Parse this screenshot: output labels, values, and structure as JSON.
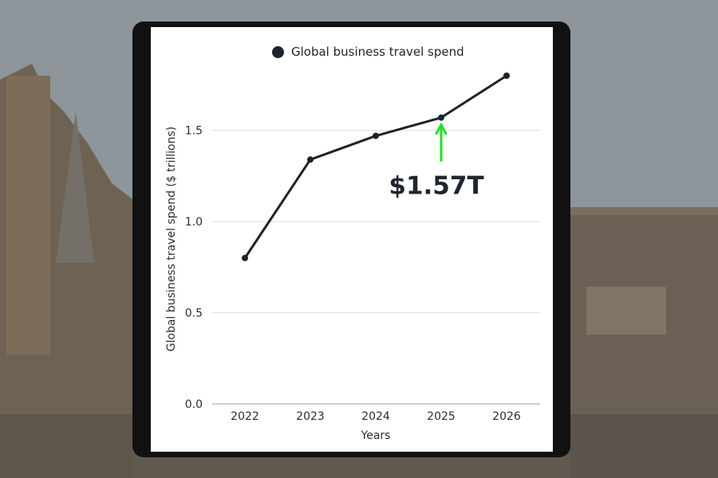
{
  "colors": {
    "line": "#1d232c",
    "grid": "#dddddd",
    "arrow": "#22e022",
    "text": "#2a2d31"
  },
  "chart_data": {
    "type": "line",
    "title": "",
    "x": [
      "2022",
      "2023",
      "2024",
      "2025",
      "2026"
    ],
    "series": [
      {
        "name": "Global business travel spend",
        "values": [
          0.8,
          1.34,
          1.47,
          1.57,
          1.8
        ]
      }
    ],
    "xlabel": "Years",
    "ylabel": "Global business travel spend ($ trillions)",
    "yticks": [
      "0.0",
      "0.5",
      "1.0",
      "1.5"
    ],
    "ylim": [
      0,
      1.8
    ],
    "grid": true,
    "legend": "top-center",
    "annotation": {
      "text": "$1.57T",
      "x": "2025",
      "value": 1.57,
      "arrow_color": "green"
    }
  }
}
